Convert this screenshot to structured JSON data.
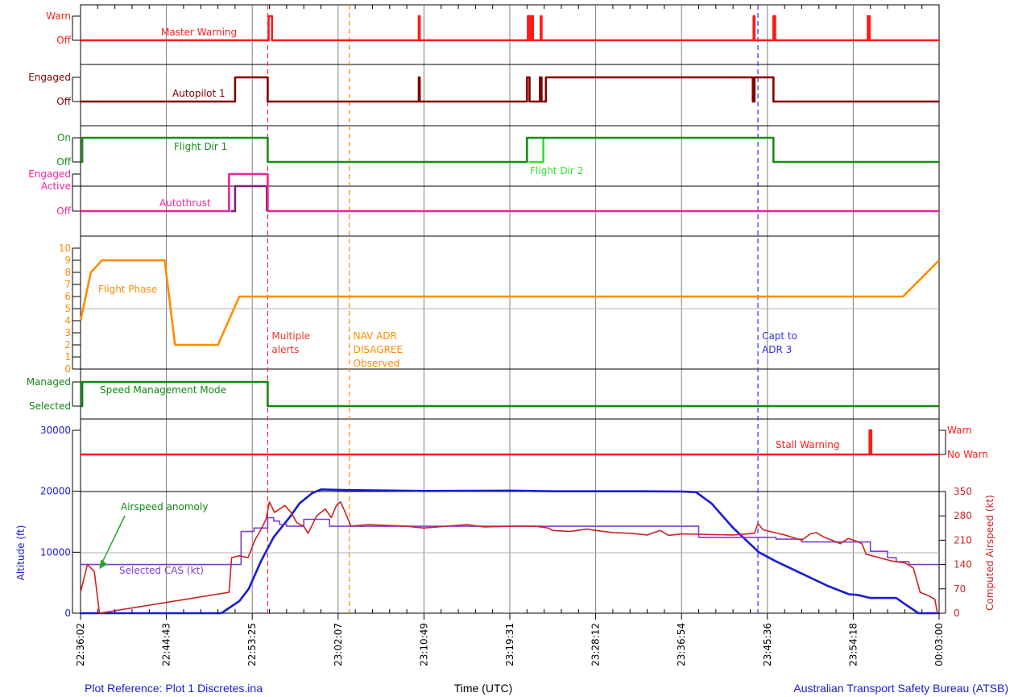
{
  "colors": {
    "warning": "#ff1a1a",
    "autopilot": "#800000",
    "fd1": "#1a8a1a",
    "fd2": "#33dd33",
    "autothrust": "#ee2299",
    "autothrust_active": "#7a2277",
    "phase": "#ff8c00",
    "speed_mode": "#118811",
    "stall": "#ff1a1a",
    "altitude": "#1a1ad8",
    "cas": "#7b3fd0",
    "airspeed": "#cc2222",
    "event_alerts": "#ee3333",
    "event_nav": "#ff8c00",
    "event_capt": "#3333dd",
    "footer": "#1a1ad8"
  },
  "chart_data": {
    "type": "line",
    "xlabel": "Time (UTC)",
    "x_ticks": [
      "22:36:02",
      "22:44:43",
      "22:53:25",
      "23:02:07",
      "23:10:49",
      "23:19:31",
      "23:28:12",
      "23:36:54",
      "23:45:36",
      "23:54:18",
      "00:03:00"
    ],
    "x_range": [
      0,
      100
    ],
    "events": [
      {
        "label": [
          "Multiple",
          "alerts"
        ],
        "x": 21.8,
        "color_key": "event_alerts"
      },
      {
        "label": [
          "NAV ADR",
          "DISAGREE",
          "Observed"
        ],
        "x": 31.3,
        "color_key": "event_nav"
      },
      {
        "label": [
          "Capt to",
          "ADR 3"
        ],
        "x": 78.9,
        "color_key": "event_capt"
      }
    ],
    "discretes": [
      {
        "key": "master_warning",
        "name": "Master Warning",
        "states": [
          "Off",
          "Warn"
        ],
        "series": [
          {
            "color_key": "warning",
            "points": [
              [
                0,
                0
              ],
              [
                21.9,
                0
              ],
              [
                21.9,
                1
              ],
              [
                22.3,
                1
              ],
              [
                22.3,
                0
              ],
              [
                39.4,
                0
              ],
              [
                39.4,
                1
              ],
              [
                39.5,
                1
              ],
              [
                39.5,
                0
              ],
              [
                52.1,
                0
              ],
              [
                52.1,
                1
              ],
              [
                52.3,
                1
              ],
              [
                52.3,
                0
              ],
              [
                52.5,
                0
              ],
              [
                52.5,
                1
              ],
              [
                52.7,
                1
              ],
              [
                52.7,
                0
              ],
              [
                53.6,
                0
              ],
              [
                53.6,
                1
              ],
              [
                53.7,
                1
              ],
              [
                53.7,
                0
              ],
              [
                78.4,
                0
              ],
              [
                78.4,
                1
              ],
              [
                78.5,
                1
              ],
              [
                78.5,
                0
              ],
              [
                80.7,
                0
              ],
              [
                80.7,
                1
              ],
              [
                80.9,
                1
              ],
              [
                80.9,
                0
              ],
              [
                91.7,
                0
              ],
              [
                91.7,
                1
              ],
              [
                91.9,
                1
              ],
              [
                91.9,
                0
              ],
              [
                100,
                0
              ]
            ]
          }
        ]
      },
      {
        "key": "autopilot1",
        "name": "Autopilot 1",
        "states": [
          "Off",
          "Engaged"
        ],
        "series": [
          {
            "color_key": "autopilot",
            "points": [
              [
                0,
                0
              ],
              [
                18,
                0
              ],
              [
                18,
                1
              ],
              [
                21.8,
                1
              ],
              [
                21.8,
                0
              ],
              [
                39.4,
                0
              ],
              [
                39.4,
                1
              ],
              [
                39.5,
                1
              ],
              [
                39.5,
                0
              ],
              [
                52,
                0
              ],
              [
                52,
                1
              ],
              [
                52.3,
                1
              ],
              [
                52.3,
                0
              ],
              [
                53.5,
                0
              ],
              [
                53.5,
                1
              ],
              [
                53.7,
                1
              ],
              [
                53.7,
                0
              ],
              [
                54.2,
                0
              ],
              [
                54.2,
                1
              ],
              [
                78.3,
                1
              ],
              [
                78.3,
                0
              ],
              [
                78.5,
                0
              ],
              [
                78.5,
                1
              ],
              [
                80.7,
                1
              ],
              [
                80.7,
                0
              ],
              [
                100,
                0
              ]
            ]
          }
        ]
      },
      {
        "key": "flight_dir",
        "name": "Flight Dir 1",
        "name2": "Flight Dir 2",
        "states": [
          "Off",
          "On"
        ],
        "series": [
          {
            "color_key": "fd2",
            "points": [
              [
                52.2,
                0
              ],
              [
                53.9,
                0
              ],
              [
                53.9,
                1
              ],
              [
                54.1,
                1
              ]
            ]
          },
          {
            "color_key": "fd1",
            "points": [
              [
                0,
                0
              ],
              [
                0.2,
                0
              ],
              [
                0.2,
                1
              ],
              [
                21.8,
                1
              ],
              [
                21.8,
                0
              ],
              [
                52,
                0
              ],
              [
                52,
                1
              ],
              [
                80.7,
                1
              ],
              [
                80.7,
                0
              ],
              [
                100,
                0
              ]
            ]
          }
        ]
      },
      {
        "key": "autothrust",
        "name": "Autothrust",
        "states": [
          "Off",
          "Active",
          "Engaged"
        ],
        "series": [
          {
            "color_key": "autothrust_active",
            "points": [
              [
                17.5,
                0
              ],
              [
                18,
                0
              ],
              [
                18,
                1
              ],
              [
                21.7,
                1
              ],
              [
                21.7,
                0
              ]
            ]
          },
          {
            "color_key": "autothrust",
            "points": [
              [
                0,
                0
              ],
              [
                17.3,
                0
              ],
              [
                17.3,
                2
              ],
              [
                21.8,
                2
              ],
              [
                21.8,
                0
              ],
              [
                100,
                0
              ]
            ]
          }
        ]
      },
      {
        "key": "speed_mode",
        "name": "Speed Management Mode",
        "states": [
          "Selected",
          "Managed"
        ],
        "series": [
          {
            "color_key": "speed_mode",
            "points": [
              [
                0,
                0
              ],
              [
                0.2,
                0
              ],
              [
                0.2,
                1
              ],
              [
                21.8,
                1
              ],
              [
                21.8,
                0
              ],
              [
                100,
                0
              ]
            ]
          }
        ]
      },
      {
        "key": "stall_warning",
        "name": "Stall Warning",
        "states": [
          "No Warn",
          "Warn"
        ],
        "series": [
          {
            "color_key": "stall",
            "points": [
              [
                0,
                0
              ],
              [
                91.9,
                0
              ],
              [
                91.9,
                1
              ],
              [
                92.1,
                1
              ],
              [
                92.1,
                0
              ],
              [
                100,
                0
              ]
            ]
          }
        ]
      }
    ],
    "flight_phase": {
      "name": "Flight Phase",
      "y_range": [
        0,
        10
      ],
      "y_ticks": [
        "0",
        "1",
        "2",
        "3",
        "4",
        "5",
        "6",
        "7",
        "8",
        "9",
        "10"
      ],
      "points": [
        [
          0,
          4
        ],
        [
          1.2,
          8
        ],
        [
          2.5,
          9
        ],
        [
          9.8,
          9
        ],
        [
          11,
          2
        ],
        [
          16,
          2
        ],
        [
          18.5,
          6
        ],
        [
          95.8,
          6
        ],
        [
          100,
          9
        ]
      ]
    },
    "altitude": {
      "name": "Altitude (ft)",
      "y_range": [
        0,
        30000
      ],
      "y_ticks": [
        "0",
        "10000",
        "20000",
        "30000"
      ],
      "points": [
        [
          0,
          0
        ],
        [
          16.4,
          0
        ],
        [
          18.5,
          2000
        ],
        [
          19.6,
          4000
        ],
        [
          21,
          8500
        ],
        [
          22.5,
          12500
        ],
        [
          24.5,
          16000
        ],
        [
          25.5,
          18000
        ],
        [
          27,
          19700
        ],
        [
          28,
          20300
        ],
        [
          31,
          20200
        ],
        [
          40,
          20050
        ],
        [
          50,
          20100
        ],
        [
          55,
          20000
        ],
        [
          65,
          20000
        ],
        [
          70,
          19950
        ],
        [
          71.7,
          19850
        ],
        [
          73.5,
          18000
        ],
        [
          76,
          14000
        ],
        [
          79,
          10000
        ],
        [
          81,
          8500
        ],
        [
          84,
          6500
        ],
        [
          87,
          4500
        ],
        [
          89.5,
          3100
        ],
        [
          90.5,
          3000
        ],
        [
          92,
          2500
        ],
        [
          95,
          2500
        ],
        [
          96,
          1500
        ],
        [
          97.6,
          0
        ],
        [
          100,
          0
        ]
      ]
    },
    "airspeed": {
      "name": "Computed Airspeed (kt)",
      "y_range": [
        0,
        350
      ],
      "y_ticks": [
        "0",
        "70",
        "140",
        "210",
        "280",
        "350"
      ],
      "points": [
        [
          0,
          60
        ],
        [
          0.8,
          140
        ],
        [
          1.6,
          120
        ],
        [
          2.2,
          0
        ],
        [
          17.3,
          60
        ],
        [
          17.6,
          160
        ],
        [
          18.5,
          165
        ],
        [
          19.5,
          160
        ],
        [
          20.3,
          210
        ],
        [
          21,
          240
        ],
        [
          21.6,
          270
        ],
        [
          22,
          320
        ],
        [
          22.6,
          290
        ],
        [
          23.2,
          300
        ],
        [
          23.8,
          310
        ],
        [
          24.5,
          290
        ],
        [
          25.2,
          260
        ],
        [
          26,
          250
        ],
        [
          26.5,
          230
        ],
        [
          27.5,
          280
        ],
        [
          28.5,
          300
        ],
        [
          29.2,
          275
        ],
        [
          29.8,
          310
        ],
        [
          30.3,
          320
        ],
        [
          31,
          280
        ],
        [
          31.5,
          250
        ],
        [
          33.5,
          255
        ],
        [
          38,
          250
        ],
        [
          40,
          245
        ],
        [
          45,
          255
        ],
        [
          47,
          248
        ],
        [
          50,
          250
        ],
        [
          53,
          250
        ],
        [
          54.5,
          245
        ],
        [
          55,
          238
        ],
        [
          57,
          235
        ],
        [
          59,
          242
        ],
        [
          60,
          238
        ],
        [
          62,
          232
        ],
        [
          64,
          230
        ],
        [
          66,
          225
        ],
        [
          67.5,
          238
        ],
        [
          68.5,
          224
        ],
        [
          70,
          228
        ],
        [
          74,
          226
        ],
        [
          76,
          225
        ],
        [
          78.5,
          230
        ],
        [
          78.9,
          258
        ],
        [
          79.5,
          240
        ],
        [
          82,
          225
        ],
        [
          84,
          210
        ],
        [
          85,
          228
        ],
        [
          85.7,
          232
        ],
        [
          86.5,
          220
        ],
        [
          87.5,
          210
        ],
        [
          88.5,
          200
        ],
        [
          89.4,
          215
        ],
        [
          90.3,
          208
        ],
        [
          91,
          200
        ],
        [
          91.5,
          170
        ],
        [
          93,
          160
        ],
        [
          94.5,
          150
        ],
        [
          96,
          145
        ],
        [
          97,
          130
        ],
        [
          97.8,
          60
        ],
        [
          98.8,
          50
        ],
        [
          99.5,
          40
        ],
        [
          99.8,
          0
        ]
      ]
    },
    "selected_cas": {
      "name": "Selected CAS (kt)",
      "points": [
        [
          0,
          140
        ],
        [
          18.7,
          140
        ],
        [
          18.7,
          235
        ],
        [
          20.2,
          235
        ],
        [
          20.2,
          245
        ],
        [
          21.8,
          245
        ],
        [
          21.8,
          275
        ],
        [
          22.5,
          275
        ],
        [
          22.5,
          265
        ],
        [
          23.2,
          265
        ],
        [
          23.2,
          255
        ],
        [
          24,
          255
        ],
        [
          24,
          250
        ],
        [
          26,
          250
        ],
        [
          26,
          270
        ],
        [
          29,
          270
        ],
        [
          29,
          250
        ],
        [
          72,
          250
        ],
        [
          72,
          218
        ],
        [
          81,
          218
        ],
        [
          81,
          213
        ],
        [
          84,
          213
        ],
        [
          84,
          205
        ],
        [
          92,
          205
        ],
        [
          92,
          178
        ],
        [
          94,
          178
        ],
        [
          94,
          160
        ],
        [
          95,
          160
        ],
        [
          95,
          148
        ],
        [
          96.5,
          148
        ],
        [
          96.5,
          140
        ],
        [
          100,
          140
        ]
      ]
    },
    "annotation": {
      "text": "Airspeed anomoly",
      "x": 2,
      "y_kt": 120
    }
  },
  "footer": {
    "left": "Plot Reference: Plot 1 Discretes.ina",
    "center": "Time (UTC)",
    "right": "Australian Transport Safety Bureau (ATSB)"
  }
}
